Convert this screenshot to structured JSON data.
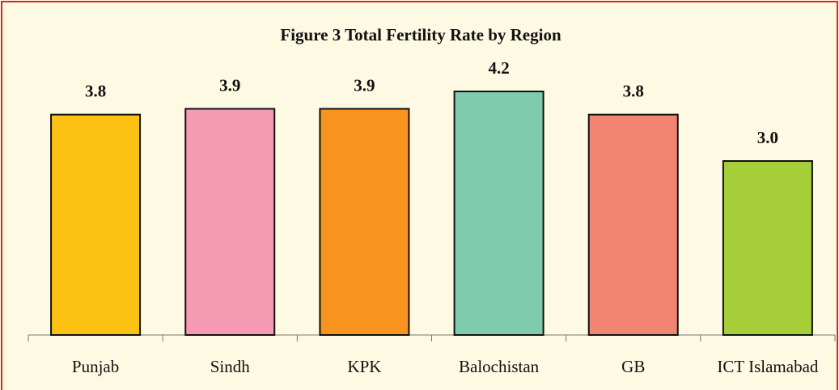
{
  "chart_data": {
    "type": "bar",
    "title": "Figure 3 Total Fertility Rate by Region",
    "categories": [
      "Punjab",
      "Sindh",
      "KPK",
      "Balochistan",
      "GB",
      "ICT Islamabad"
    ],
    "values": [
      3.8,
      3.9,
      3.9,
      4.2,
      3.8,
      3.0
    ],
    "value_labels": [
      "3.8",
      "3.9",
      "3.9",
      "4.2",
      "3.8",
      "3.0"
    ],
    "colors": [
      "#fdc113",
      "#f49ab2",
      "#f7931e",
      "#7fcbb0",
      "#f28472",
      "#a6ce39"
    ]
  }
}
